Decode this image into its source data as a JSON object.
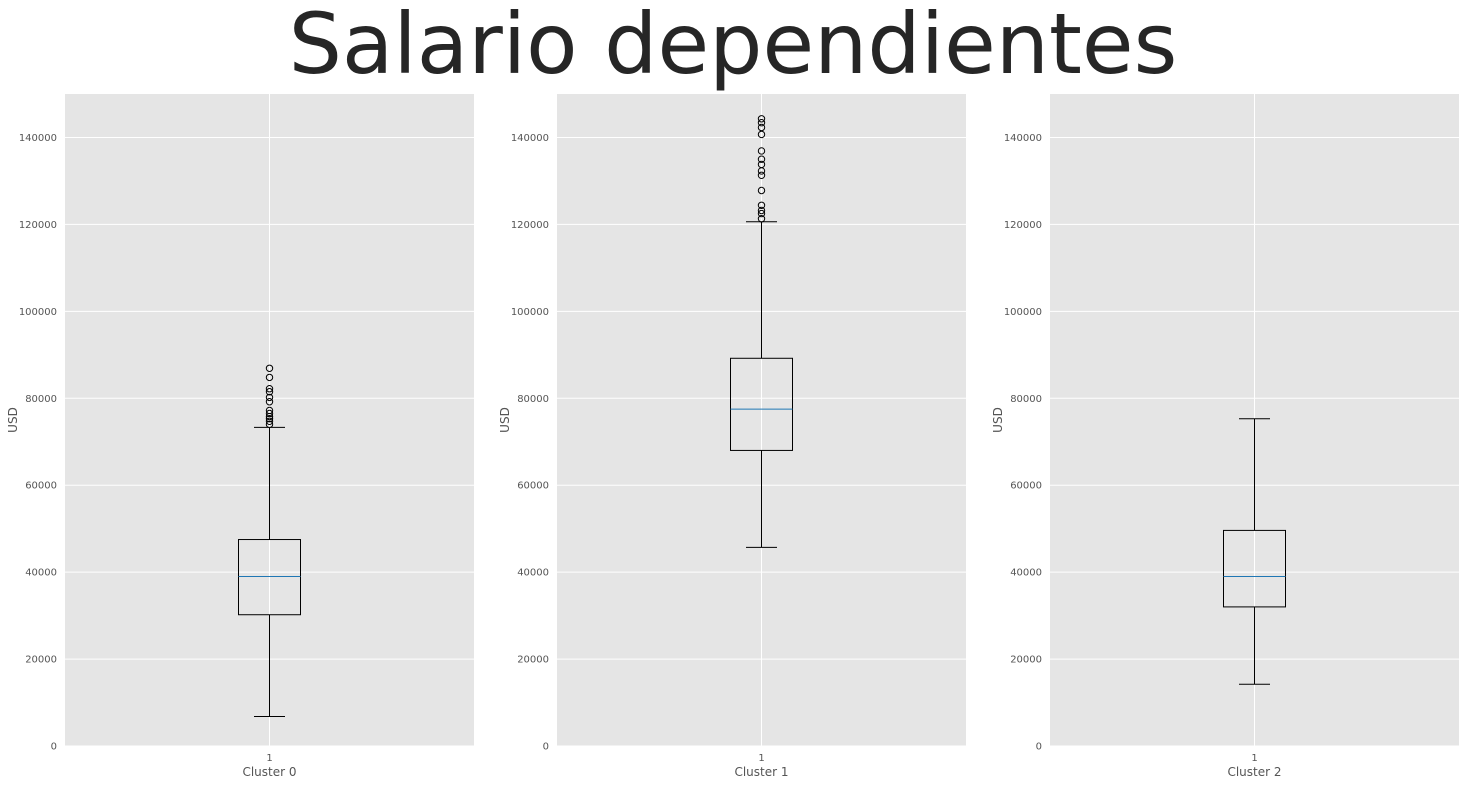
{
  "chart_data": {
    "type": "box",
    "title": "Salario dependientes",
    "panels": [
      {
        "xlabel": "Cluster 0",
        "ylabel": "USD",
        "category": "1",
        "ylim": [
          0,
          150000
        ],
        "yticks": [
          0,
          20000,
          40000,
          60000,
          80000,
          100000,
          120000,
          140000
        ],
        "whisker_low": 6800,
        "q1": 30200,
        "median": 39000,
        "q3": 47500,
        "whisker_high": 73300,
        "outliers": [
          74000,
          74700,
          75300,
          75800,
          76500,
          77200,
          79200,
          80200,
          81500,
          82200,
          84800,
          86900
        ]
      },
      {
        "xlabel": "Cluster 1",
        "ylabel": "USD",
        "category": "1",
        "ylim": [
          0,
          150000
        ],
        "yticks": [
          0,
          20000,
          40000,
          60000,
          80000,
          100000,
          120000,
          140000
        ],
        "whisker_low": 45700,
        "q1": 68000,
        "median": 77500,
        "q3": 89200,
        "whisker_high": 120600,
        "outliers": [
          121300,
          122500,
          123200,
          124400,
          127800,
          131300,
          132300,
          133800,
          135000,
          136900,
          140700,
          142300,
          143400,
          144300
        ]
      },
      {
        "xlabel": "Cluster 2",
        "ylabel": "USD",
        "category": "1",
        "ylim": [
          0,
          150000
        ],
        "yticks": [
          0,
          20000,
          40000,
          60000,
          80000,
          100000,
          120000,
          140000
        ],
        "whisker_low": 14200,
        "q1": 32000,
        "median": 39000,
        "q3": 49600,
        "whisker_high": 75300,
        "outliers": []
      }
    ]
  }
}
